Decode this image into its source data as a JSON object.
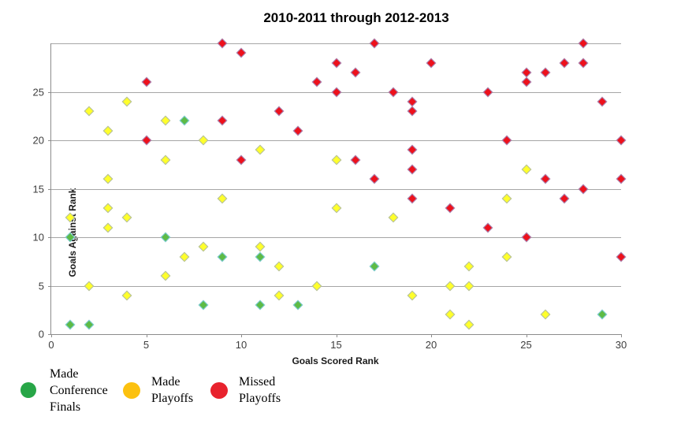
{
  "title": "2010-2011 through 2012-2013",
  "chart_data": {
    "type": "scatter",
    "title": "2010-2011 through 2012-2013",
    "xlabel": "Goals Scored Rank",
    "ylabel": "Goals Against Rank",
    "xlim": [
      0,
      30
    ],
    "ylim": [
      0,
      30
    ],
    "x_ticks": [
      0,
      5,
      10,
      15,
      20,
      25,
      30
    ],
    "y_ticks": [
      0,
      5,
      10,
      15,
      20,
      25
    ],
    "gridlines_y": [
      5,
      10,
      15,
      20,
      25,
      30
    ],
    "grid": "horizontal",
    "gridline_color": "#a6a6a6",
    "legend_position": "bottom-left",
    "series": [
      {
        "name": "Made Conference Finals",
        "legend_color": "#27a647",
        "marker_fill": "#5dbb46",
        "marker_stroke": "#7ecbe0",
        "points": [
          [
            1,
            1
          ],
          [
            2,
            1
          ],
          [
            1,
            10
          ],
          [
            6,
            10
          ],
          [
            7,
            22
          ],
          [
            8,
            3
          ],
          [
            9,
            8
          ],
          [
            11,
            8
          ],
          [
            11,
            3
          ],
          [
            13,
            3
          ],
          [
            17,
            7
          ],
          [
            29,
            2
          ]
        ]
      },
      {
        "name": "Made Playoffs",
        "legend_color": "#fcc10f",
        "marker_fill": "#ffff2b",
        "marker_stroke": "#aebaa6",
        "points": [
          [
            1,
            12
          ],
          [
            2,
            5
          ],
          [
            2,
            23
          ],
          [
            3,
            11
          ],
          [
            3,
            13
          ],
          [
            3,
            16
          ],
          [
            3,
            21
          ],
          [
            4,
            4
          ],
          [
            4,
            12
          ],
          [
            4,
            24
          ],
          [
            6,
            6
          ],
          [
            6,
            18
          ],
          [
            6,
            22
          ],
          [
            7,
            8
          ],
          [
            8,
            9
          ],
          [
            8,
            20
          ],
          [
            9,
            14
          ],
          [
            11,
            9
          ],
          [
            11,
            19
          ],
          [
            12,
            4
          ],
          [
            12,
            7
          ],
          [
            14,
            5
          ],
          [
            15,
            13
          ],
          [
            15,
            18
          ],
          [
            18,
            12
          ],
          [
            19,
            4
          ],
          [
            21,
            2
          ],
          [
            21,
            5
          ],
          [
            22,
            1
          ],
          [
            22,
            5
          ],
          [
            22,
            7
          ],
          [
            24,
            8
          ],
          [
            24,
            14
          ],
          [
            25,
            17
          ],
          [
            26,
            2
          ]
        ]
      },
      {
        "name": "Missed Playoffs",
        "legend_color": "#e8222d",
        "marker_fill": "#ed111c",
        "marker_stroke": "#a18fc0",
        "points": [
          [
            5,
            20
          ],
          [
            5,
            26
          ],
          [
            9,
            22
          ],
          [
            9,
            30
          ],
          [
            10,
            18
          ],
          [
            10,
            29
          ],
          [
            12,
            23
          ],
          [
            13,
            21
          ],
          [
            14,
            26
          ],
          [
            15,
            25
          ],
          [
            15,
            28
          ],
          [
            16,
            18
          ],
          [
            16,
            27
          ],
          [
            17,
            16
          ],
          [
            17,
            30
          ],
          [
            18,
            25
          ],
          [
            19,
            14
          ],
          [
            19,
            17
          ],
          [
            19,
            19
          ],
          [
            19,
            23
          ],
          [
            19,
            24
          ],
          [
            20,
            28
          ],
          [
            21,
            13
          ],
          [
            23,
            11
          ],
          [
            23,
            25
          ],
          [
            24,
            20
          ],
          [
            25,
            10
          ],
          [
            25,
            26
          ],
          [
            25,
            27
          ],
          [
            26,
            16
          ],
          [
            26,
            27
          ],
          [
            27,
            14
          ],
          [
            27,
            28
          ],
          [
            28,
            15
          ],
          [
            28,
            28
          ],
          [
            28,
            30
          ],
          [
            29,
            24
          ],
          [
            30,
            8
          ],
          [
            30,
            16
          ],
          [
            30,
            20
          ]
        ]
      }
    ]
  },
  "legend": {
    "items": [
      {
        "label": "Made Conference Finals"
      },
      {
        "label": "Made Playoffs"
      },
      {
        "label": "Missed Playoffs"
      }
    ]
  }
}
